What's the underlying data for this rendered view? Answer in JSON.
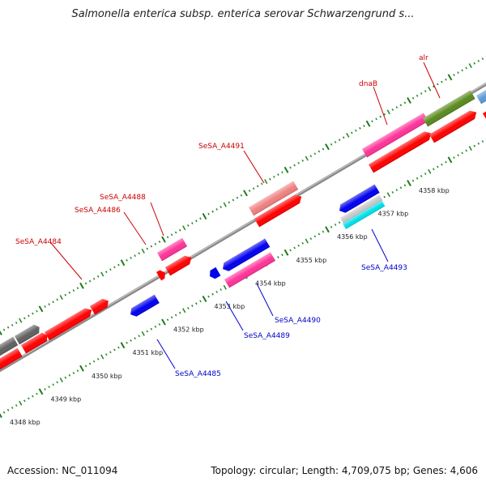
{
  "title": "Salmonella enterica subsp. enterica serovar Schwarzengrund s...",
  "footer": {
    "accession_label": "Accession:",
    "accession": "NC_011094",
    "topology_label": "Topology:",
    "topology": "circular",
    "length_label": "Length:",
    "length": "4,709,075 bp",
    "genes_label": "Genes:",
    "genes": "4,606"
  },
  "colors": {
    "backbone": "#8a8a8a",
    "tick_minor": "#2e8b2e",
    "forward_label": "#cc0000",
    "reverse_label": "#0000cc",
    "cds_red": "#ff0000",
    "cds_blue": "#0000ee",
    "cds_pink": "#ff3399",
    "cds_salmon": "#f08080",
    "cds_olive": "#5a8a1e",
    "cds_gray": "#606060",
    "cds_silver": "#c8c8c8",
    "cds_cyan": "#00e0e8",
    "cds_steel": "#5b9bd5"
  },
  "scale": {
    "unit": "kbp",
    "ticks": [
      {
        "kbp": 4348,
        "label": "4348 kbp"
      },
      {
        "kbp": 4349,
        "label": "4349 kbp"
      },
      {
        "kbp": 4350,
        "label": "4350 kbp"
      },
      {
        "kbp": 4351,
        "label": "4351 kbp"
      },
      {
        "kbp": 4352,
        "label": "4352 kbp"
      },
      {
        "kbp": 4353,
        "label": "4353 kbp"
      },
      {
        "kbp": 4354,
        "label": "4354 kbp"
      },
      {
        "kbp": 4355,
        "label": "4355 kbp"
      },
      {
        "kbp": 4356,
        "label": "4356 kbp"
      },
      {
        "kbp": 4357,
        "label": "4357 kbp"
      },
      {
        "kbp": 4358,
        "label": "4358 kbp"
      }
    ]
  },
  "gene_labels": [
    {
      "name": "SeSA_A4484",
      "strand": "forward"
    },
    {
      "name": "SeSA_A4486",
      "strand": "forward"
    },
    {
      "name": "SeSA_A4488",
      "strand": "forward"
    },
    {
      "name": "SeSA_A4491",
      "strand": "forward"
    },
    {
      "name": "dnaB",
      "strand": "forward"
    },
    {
      "name": "alr",
      "strand": "forward"
    },
    {
      "name": "SeSA_A4485",
      "strand": "reverse"
    },
    {
      "name": "SeSA_A4489",
      "strand": "reverse"
    },
    {
      "name": "SeSA_A4490",
      "strand": "reverse"
    },
    {
      "name": "SeSA_A4493",
      "strand": "reverse"
    }
  ]
}
